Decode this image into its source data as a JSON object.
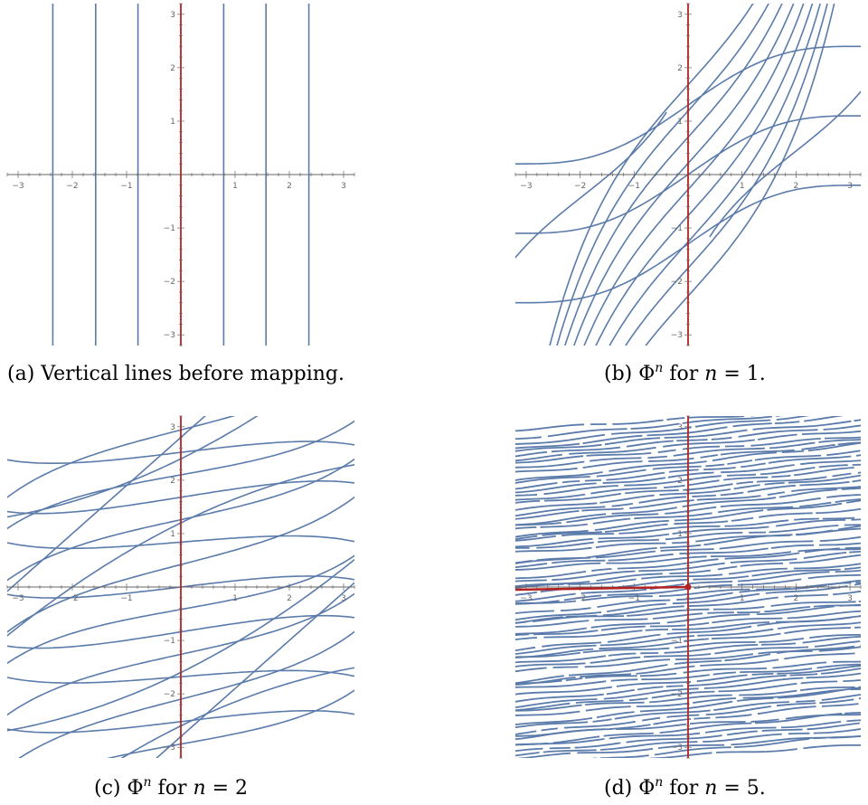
{
  "captions": {
    "a": "(a)  Vertical lines before mapping.",
    "b_pre": "(b)  Φ",
    "b_sup": "n",
    "b_post": " for ",
    "b_var": "n",
    "b_val": " = 1.",
    "c_pre": "(c)  Φ",
    "c_sup": "n",
    "c_post": " for ",
    "c_var": "n",
    "c_val": " = 2",
    "d_pre": "(d)  Φ",
    "d_sup": "n",
    "d_post": " for ",
    "d_var": "n",
    "d_val": " = 5."
  },
  "colors": {
    "curve": "#5b7bab",
    "axis_highlight": "#b22222",
    "axis": "#666666"
  },
  "chart_data": [
    {
      "panel": "a",
      "type": "line",
      "xlim": [
        -3.2,
        3.2
      ],
      "ylim": [
        -3.2,
        3.2
      ],
      "ticks": [
        -3,
        -2,
        -1,
        1,
        2,
        3
      ],
      "vertical_lines": [
        -2.36,
        -1.57,
        -0.79,
        0.79,
        1.57,
        2.36
      ],
      "highlight": "y-axis"
    },
    {
      "panel": "b",
      "type": "line",
      "xlim": [
        -3.2,
        3.2
      ],
      "ylim": [
        -3.2,
        3.2
      ],
      "ticks": [
        -3,
        -2,
        -1,
        1,
        2,
        3
      ],
      "highlight": "y-axis",
      "n": 1
    },
    {
      "panel": "c",
      "type": "line",
      "xlim": [
        -3.2,
        3.2
      ],
      "ylim": [
        -3.2,
        3.2
      ],
      "ticks": [
        -3,
        -2,
        -1,
        1,
        2,
        3
      ],
      "highlight": "y-axis",
      "n": 2
    },
    {
      "panel": "d",
      "type": "line",
      "xlim": [
        -3.2,
        3.2
      ],
      "ylim": [
        -3.2,
        3.2
      ],
      "ticks": [
        -3,
        -2,
        -1,
        1,
        2,
        3
      ],
      "highlight": "y-axis and negative x-axis segment",
      "n": 5
    }
  ]
}
